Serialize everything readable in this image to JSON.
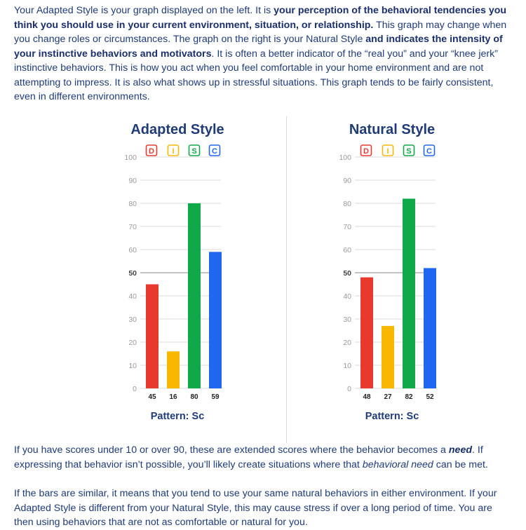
{
  "intro": {
    "lines": [
      [
        {
          "t": "Your Adapted Style is your graph displayed on the left. It is "
        },
        {
          "t": "your perception of the behavioral tendencies you",
          "b": true
        }
      ],
      [
        {
          "t": "think you should use in your current environment, situation, or relationship.",
          "b": true
        },
        {
          "t": " This graph may change when"
        }
      ],
      [
        {
          "t": "you change roles or circumstances. The graph on the right is your Natural Style "
        },
        {
          "t": "and indicates the intensity of",
          "b": true
        }
      ],
      [
        {
          "t": "your instinctive behaviors and motivators",
          "b": true
        },
        {
          "t": ". It is often a better indicator of the “real you” and your “knee jerk”"
        }
      ],
      [
        {
          "t": "instinctive behaviors. This is how you act when you feel comfortable in your home environment and are not"
        }
      ],
      [
        {
          "t": "attempting to impress. It is also what shows up in stressful situations. This graph tends to be fairly consistent,"
        }
      ],
      [
        {
          "t": "even in different environments."
        }
      ]
    ]
  },
  "extended": {
    "lines": [
      [
        {
          "t": "If you have scores under 10 or over 90, these are extended scores where the behavior becomes a "
        },
        {
          "t": "need",
          "b": true,
          "i": true
        },
        {
          "t": ". If"
        }
      ],
      [
        {
          "t": "expressing that behavior isn’t possible, you’ll likely create situations where that "
        },
        {
          "t": "behavioral need",
          "i": true
        },
        {
          "t": " can be met."
        }
      ]
    ]
  },
  "similar": {
    "lines": [
      [
        {
          "t": "If the bars are similar, it means that you tend to use your same natural behaviors in either environment. If your"
        }
      ],
      [
        {
          "t": "Adapted Style is different from your Natural Style, this may cause stress if over a long period of time. You are"
        }
      ],
      [
        {
          "t": "then using behaviors that are not as comfortable or natural for you."
        }
      ]
    ]
  },
  "colors": {
    "D": "#e8392f",
    "I": "#f9b800",
    "S": "#10a94a",
    "C": "#1f66f0"
  },
  "chart_data": [
    {
      "type": "bar",
      "title": "Adapted Style",
      "categories": [
        "D",
        "I",
        "S",
        "C"
      ],
      "values": [
        45,
        16,
        80,
        59
      ],
      "ylim": [
        0,
        100
      ],
      "yticks": [
        0,
        10,
        20,
        30,
        40,
        50,
        60,
        70,
        80,
        90,
        100
      ],
      "grid": true,
      "legend": [
        "D",
        "I",
        "S",
        "C"
      ],
      "legend_position": "top",
      "pattern": "Pattern: Sc"
    },
    {
      "type": "bar",
      "title": "Natural Style",
      "categories": [
        "D",
        "I",
        "S",
        "C"
      ],
      "values": [
        48,
        27,
        82,
        52
      ],
      "ylim": [
        0,
        100
      ],
      "yticks": [
        0,
        10,
        20,
        30,
        40,
        50,
        60,
        70,
        80,
        90,
        100
      ],
      "grid": true,
      "legend": [
        "D",
        "I",
        "S",
        "C"
      ],
      "legend_position": "top",
      "pattern": "Pattern: Sc"
    }
  ]
}
